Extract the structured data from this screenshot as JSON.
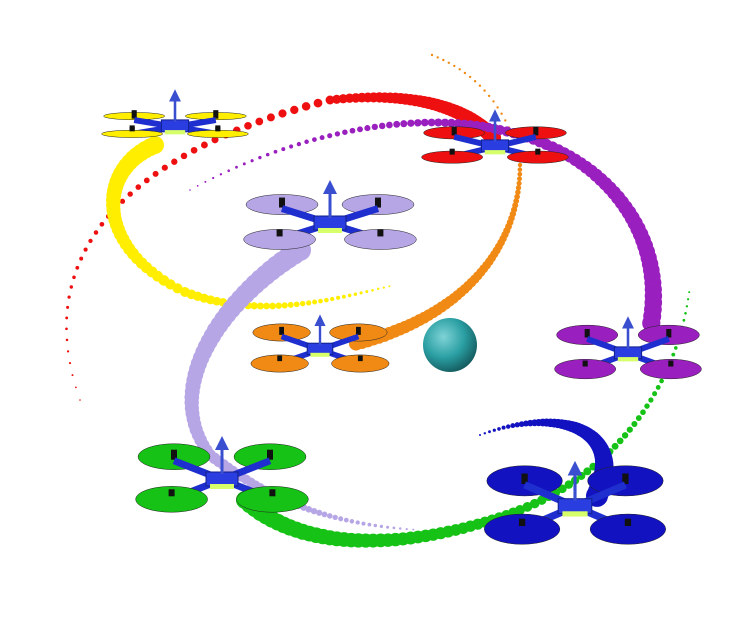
{
  "scene": {
    "background": "#ffffff",
    "obstacle": {
      "color": "#2a9fa3"
    },
    "drones": [
      {
        "id": "yellow",
        "color": "#ffee00",
        "arm_color": "#1f2fcf",
        "size": "small"
      },
      {
        "id": "red",
        "color": "#ee1010",
        "arm_color": "#1f2fcf",
        "size": "small"
      },
      {
        "id": "lavender",
        "color": "#b7a6e6",
        "arm_color": "#1f2fcf",
        "size": "medium"
      },
      {
        "id": "orange",
        "color": "#f08a15",
        "arm_color": "#1f2fcf",
        "size": "small"
      },
      {
        "id": "purple",
        "color": "#9a1fbf",
        "arm_color": "#1f2fcf",
        "size": "small"
      },
      {
        "id": "green",
        "color": "#15c215",
        "arm_color": "#1f2fcf",
        "size": "large"
      },
      {
        "id": "blue",
        "color": "#1212c0",
        "arm_color": "#1f2fcf",
        "size": "large"
      }
    ],
    "trails": [
      {
        "id": "red-trail",
        "color": "#ee1010"
      },
      {
        "id": "yellow-trail",
        "color": "#ffee00"
      },
      {
        "id": "orange-trail",
        "color": "#f08a15"
      },
      {
        "id": "purple-trail",
        "color": "#9a1fbf"
      },
      {
        "id": "lavender-trail",
        "color": "#b7a6e6"
      },
      {
        "id": "green-trail",
        "color": "#15c215"
      },
      {
        "id": "blue-trail",
        "color": "#1212c0"
      }
    ]
  }
}
